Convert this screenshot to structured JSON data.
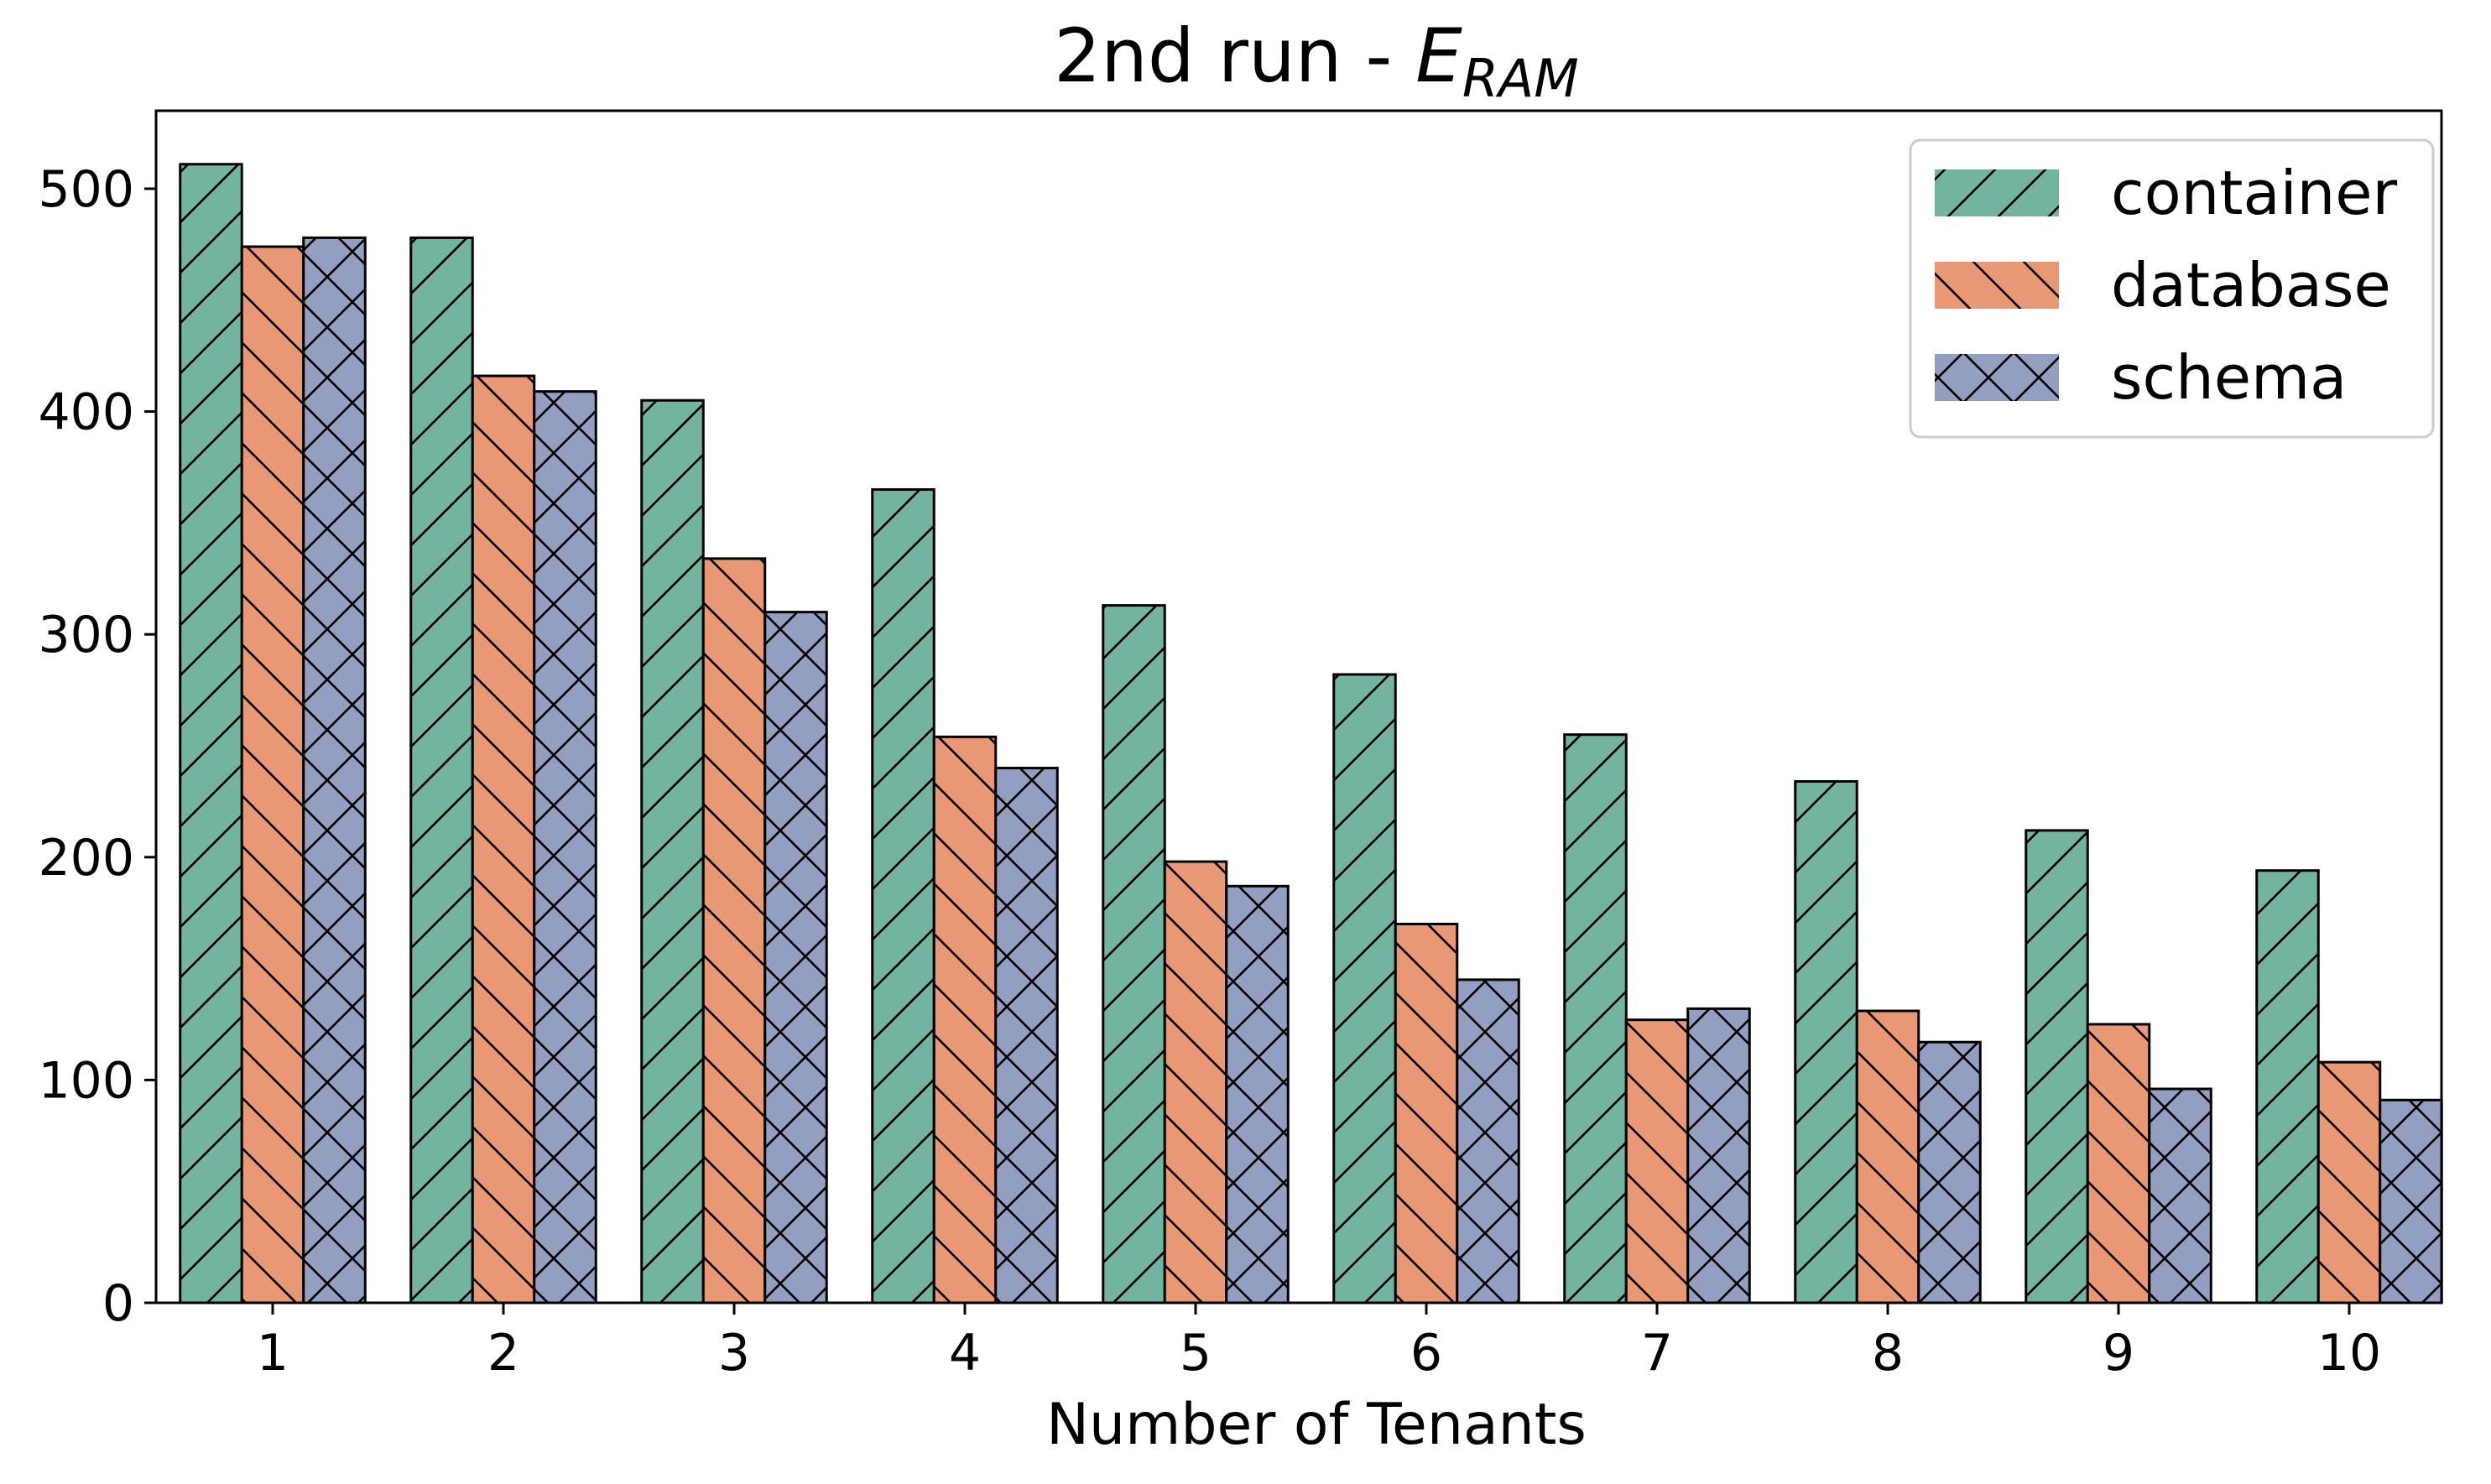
{
  "chart_data": {
    "type": "bar",
    "title": "2nd run - ",
    "title_symbol": "E",
    "title_subscript": "RAM",
    "xlabel": "Number of Tenants",
    "ylabel": "",
    "categories": [
      "1",
      "2",
      "3",
      "4",
      "5",
      "6",
      "7",
      "8",
      "9",
      "10"
    ],
    "ylim": [
      0,
      535
    ],
    "yticks": [
      "0",
      "100",
      "200",
      "300",
      "400",
      "500"
    ],
    "legend_position": "top-right",
    "grid": false,
    "series": [
      {
        "name": "container",
        "color": "#72b49f",
        "hatch": "/",
        "values": [
          511,
          478,
          405,
          365,
          313,
          282,
          255,
          234,
          212,
          194
        ]
      },
      {
        "name": "database",
        "color": "#e99876",
        "hatch": "\\",
        "values": [
          474,
          416,
          334,
          254,
          198,
          170,
          127,
          131,
          125,
          108
        ]
      },
      {
        "name": "schema",
        "color": "#929fc1",
        "hatch": "x",
        "values": [
          478,
          409,
          310,
          240,
          187,
          145,
          132,
          117,
          96,
          91
        ]
      }
    ]
  }
}
